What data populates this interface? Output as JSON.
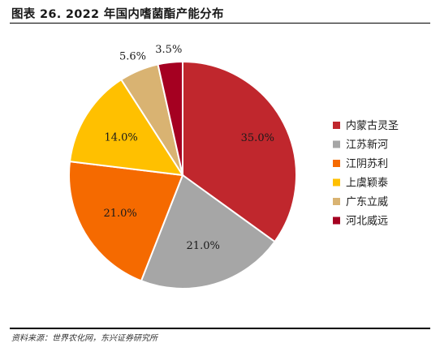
{
  "title": "图表 26. 2022 年国内嗜菌酯产能分布",
  "source": "资料来源：世界农化网，东兴证券研究所",
  "chart_data": {
    "type": "pie",
    "title": "",
    "slices": [
      {
        "label": "内蒙古灵圣",
        "value": 35.0,
        "value_label": "35.0%",
        "color": "#C0272D"
      },
      {
        "label": "江苏新河",
        "value": 21.0,
        "value_label": "21.0%",
        "color": "#A6A6A6"
      },
      {
        "label": "江阴苏利",
        "value": 21.0,
        "value_label": "21.0%",
        "color": "#F56A00"
      },
      {
        "label": "上虞颖泰",
        "value": 14.0,
        "value_label": "14.0%",
        "color": "#FFC000"
      },
      {
        "label": "广东立威",
        "value": 5.6,
        "value_label": "5.6%",
        "color": "#D9B372"
      },
      {
        "label": "河北威远",
        "value": 3.5,
        "value_label": "3.5%",
        "color": "#A50021"
      }
    ],
    "legend_position": "right",
    "start_angle": "12 o'clock, clockwise"
  }
}
